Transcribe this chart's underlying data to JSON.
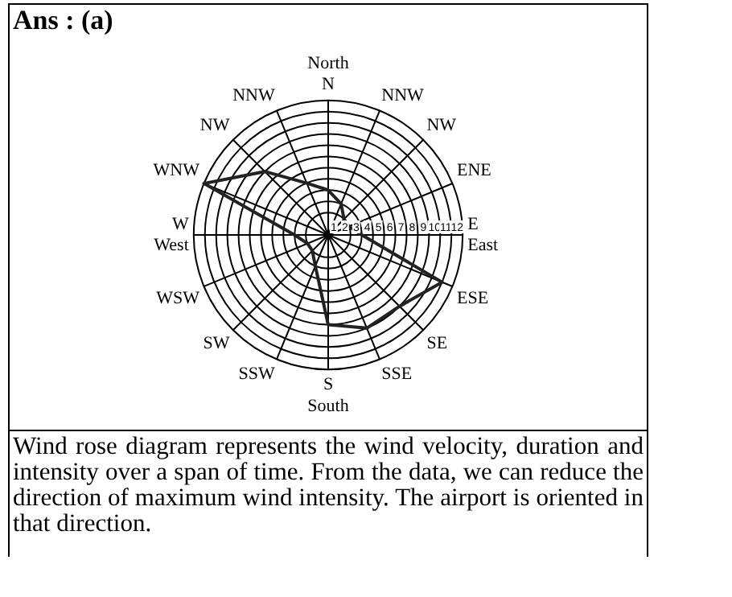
{
  "chart_data": {
    "type": "radar",
    "title": "Ans : (a)",
    "categories": [
      "North\nN",
      "NNW",
      "NW",
      "ENE",
      "E\nEast",
      "ESE",
      "SE",
      "SSE",
      "S\nSouth",
      "SSW",
      "SW",
      "WSW",
      "W\nWest",
      "WNW",
      "NW",
      "NNW"
    ],
    "series": [
      {
        "color": "#222222",
        "values": [
          4,
          3,
          2,
          2,
          3,
          11,
          9,
          9,
          8,
          3,
          2,
          2,
          3,
          12,
          8,
          5
        ]
      }
    ],
    "ylim": [
      0,
      12
    ],
    "yticks": [
      1,
      2,
      3,
      4,
      5,
      6,
      7,
      8,
      9,
      10,
      11,
      12
    ],
    "grid": true,
    "marker": "none",
    "annotations": [
      "Wind rose diagram represents the wind velocity, duration and intensity over a span of time. From the data, we can reduce the direction of maximum wind intensity. The airport is oriented in that direction."
    ]
  }
}
